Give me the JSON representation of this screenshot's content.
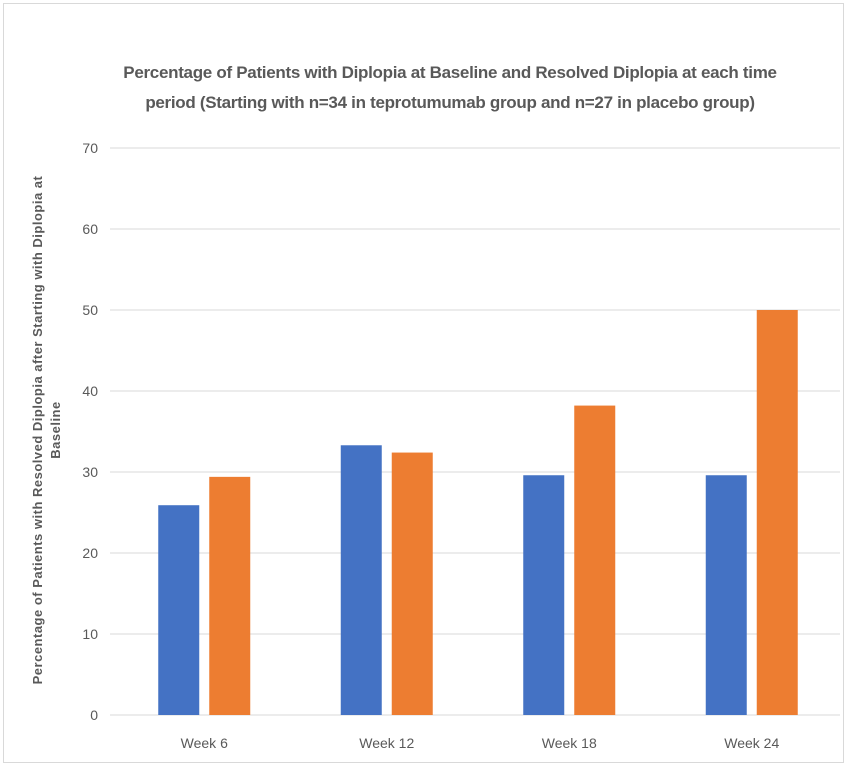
{
  "chart_data": {
    "type": "bar",
    "title": "Percentage of Patients with Diplopia at Baseline and Resolved Diplopia at each time period (Starting with n=34 in teprotumumab group and n=27 in placebo group)",
    "xlabel": "",
    "ylabel": "Percentage of Patients with Resolved Diplopia after Starting with Diplopia at Baseline",
    "categories": [
      "Week 6",
      "Week 12",
      "Week 18",
      "Week 24"
    ],
    "series": [
      {
        "values": [
          25.9,
          33.3,
          29.6,
          29.6
        ],
        "color": "#4472c4"
      },
      {
        "values": [
          29.4,
          32.4,
          38.2,
          50.0
        ],
        "color": "#ed7d31"
      }
    ],
    "ylim": [
      0,
      70
    ],
    "yticks": [
      0,
      10,
      20,
      30,
      40,
      50,
      60,
      70
    ],
    "grid": true,
    "legend": "none"
  }
}
